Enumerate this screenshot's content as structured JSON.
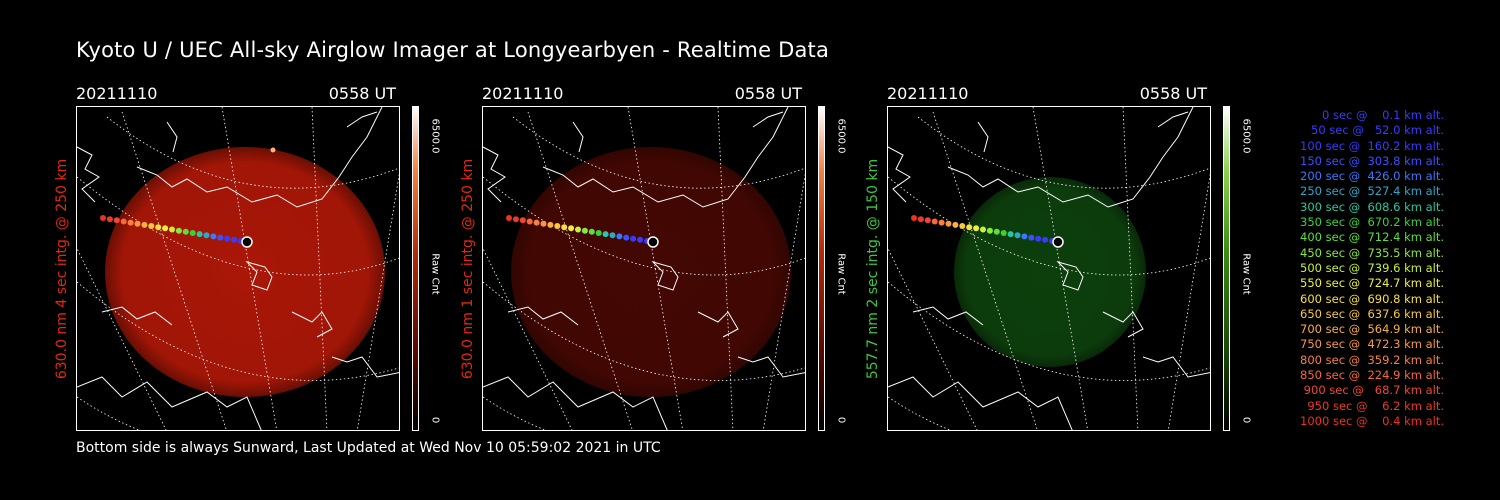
{
  "title": "Kyoto U / UEC All-sky Airglow Imager at Longyearbyen - Realtime Data",
  "footer": "Bottom side is always Sunward, Last Updated at Wed Nov 10 05:59:02 2021 in UTC",
  "panels": [
    {
      "date": "20211110",
      "time": "0558 UT",
      "ylabel": "630.0 nm 4 sec intg. @ 250 km",
      "color": "#e02a10",
      "cbar_max": "6500.0",
      "cbar_min": "0",
      "cbar_label": "Raw Cnt",
      "glow": "#c01a08",
      "glow_opacity": 0.88
    },
    {
      "date": "20211110",
      "time": "0558 UT",
      "ylabel": "630.0 nm 1 sec intg. @ 250 km",
      "color": "#e02a10",
      "cbar_max": "6500.0",
      "cbar_min": "0",
      "cbar_label": "Raw Cnt",
      "glow": "#5a0a04",
      "glow_opacity": 0.75
    },
    {
      "date": "20211110",
      "time": "0558 UT",
      "ylabel": "557.7 nm 2 sec intg. @ 150 km",
      "color": "#3cc83c",
      "cbar_max": "6500.0",
      "cbar_min": "0",
      "cbar_label": "Raw Cnt",
      "glow": "#0f4a0f",
      "glow_opacity": 0.85
    }
  ],
  "legend": [
    {
      "text": "   0 sec @    0.1 km alt.",
      "color": "#3a3aff"
    },
    {
      "text": "  50 sec @   52.0 km alt.",
      "color": "#3a3aff"
    },
    {
      "text": " 100 sec @  160.2 km alt.",
      "color": "#3a3aff"
    },
    {
      "text": " 150 sec @  303.8 km alt.",
      "color": "#3a50ff"
    },
    {
      "text": " 200 sec @  426.0 km alt.",
      "color": "#3a78ff"
    },
    {
      "text": " 250 sec @  527.4 km alt.",
      "color": "#2aa8c8"
    },
    {
      "text": " 300 sec @  608.6 km alt.",
      "color": "#2ac8a0"
    },
    {
      "text": " 350 sec @  670.2 km alt.",
      "color": "#3ad23a"
    },
    {
      "text": " 400 sec @  712.4 km alt.",
      "color": "#5ae03a"
    },
    {
      "text": " 450 sec @  735.5 km alt.",
      "color": "#8ae83a"
    },
    {
      "text": " 500 sec @  739.6 km alt.",
      "color": "#c8f03a"
    },
    {
      "text": " 550 sec @  724.7 km alt.",
      "color": "#f0f03a"
    },
    {
      "text": " 600 sec @  690.8 km alt.",
      "color": "#f8e040"
    },
    {
      "text": " 650 sec @  637.6 km alt.",
      "color": "#f8c840"
    },
    {
      "text": " 700 sec @  564.9 km alt.",
      "color": "#f8b040"
    },
    {
      "text": " 750 sec @  472.3 km alt.",
      "color": "#f89840"
    },
    {
      "text": " 800 sec @  359.2 km alt.",
      "color": "#f88040"
    },
    {
      "text": " 850 sec @  224.9 km alt.",
      "color": "#f86838"
    },
    {
      "text": " 900 sec @   68.7 km alt.",
      "color": "#f04830"
    },
    {
      "text": " 950 sec @    6.2 km alt.",
      "color": "#f03828"
    },
    {
      "text": "1000 sec @    0.4 km alt.",
      "color": "#f03020"
    }
  ]
}
